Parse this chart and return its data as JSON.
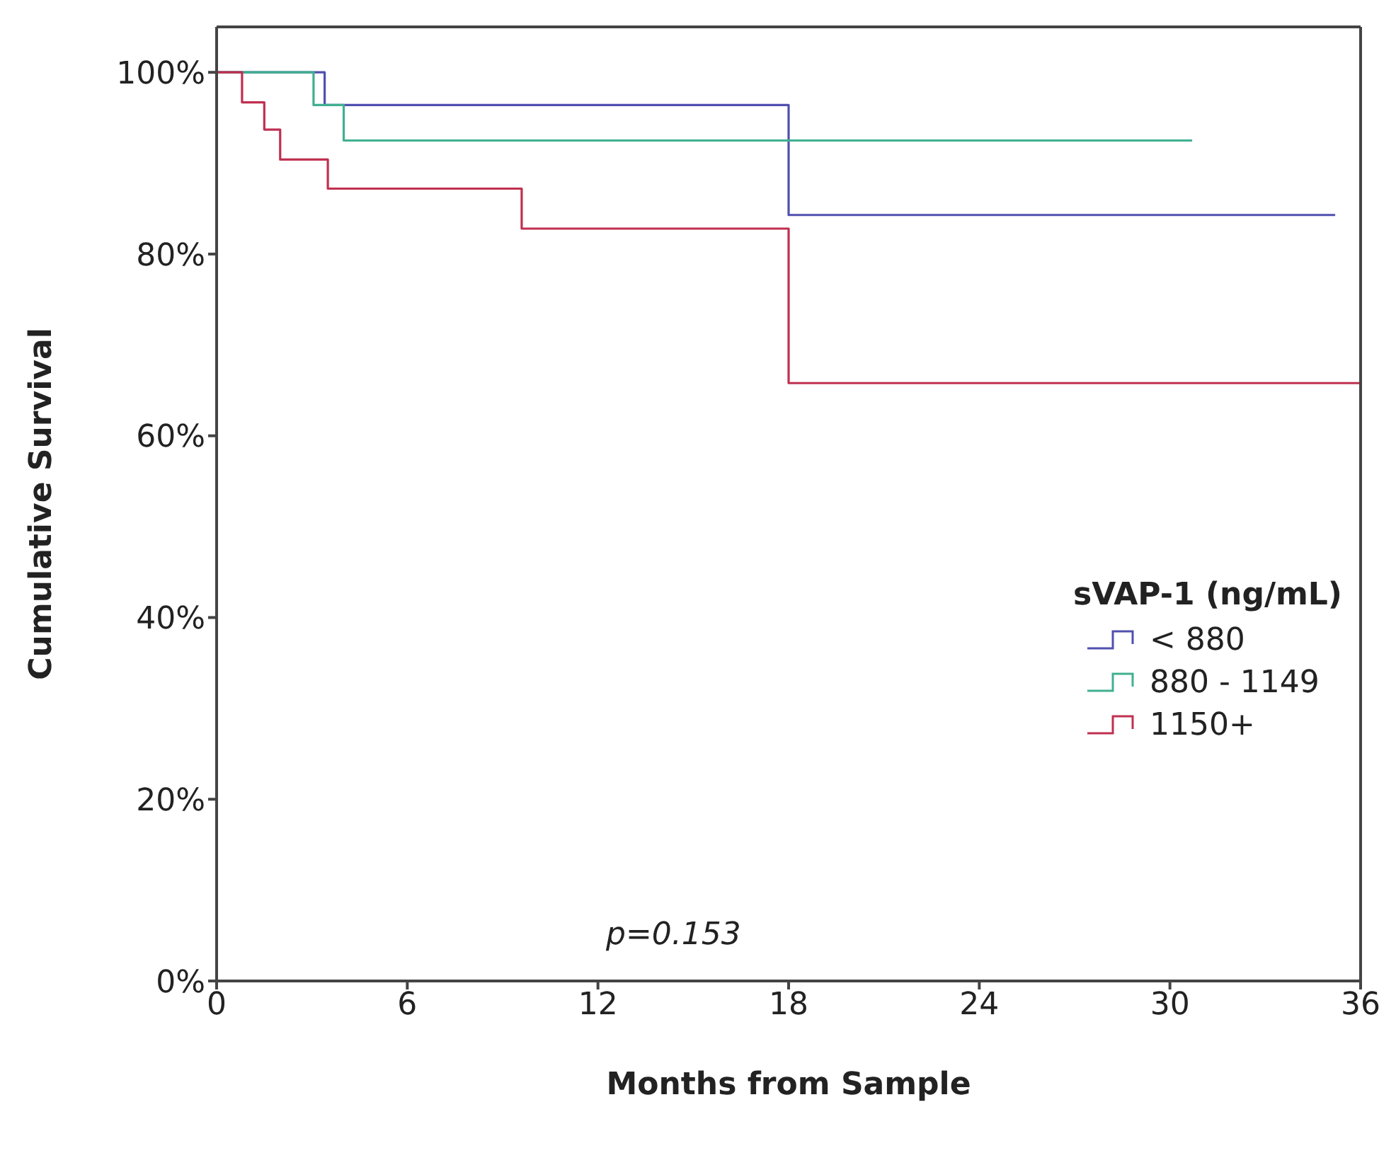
{
  "chart_data": {
    "type": "step",
    "xlabel": "Months from Sample",
    "ylabel": "Cumulative Survival",
    "legend_title": "sVAP-1 (ng/mL)",
    "legend": "right",
    "marker": "none",
    "xlim": [
      0,
      36
    ],
    "xticks": [
      0,
      6,
      12,
      18,
      24,
      30,
      36
    ],
    "ylim": [
      0,
      105
    ],
    "yticks": [
      {
        "value": 0,
        "label": "0%"
      },
      {
        "value": 20,
        "label": "20%"
      },
      {
        "value": 40,
        "label": "40%"
      },
      {
        "value": 60,
        "label": "60%"
      },
      {
        "value": 80,
        "label": "80%"
      },
      {
        "value": 100,
        "label": "100%"
      }
    ],
    "series": [
      {
        "name": "< 880",
        "color": "#5050b0",
        "x": [
          0,
          3.4,
          18,
          35.2
        ],
        "values": [
          100,
          96.4,
          84.3,
          84.3
        ]
      },
      {
        "name": "880 - 1149",
        "color": "#40b090",
        "x": [
          0,
          3.05,
          4,
          30.7
        ],
        "values": [
          100,
          96.4,
          92.5,
          92.5
        ]
      },
      {
        "name": "1150+",
        "color": "#c03050",
        "x": [
          0,
          0.8,
          1.5,
          2,
          3.5,
          9.6,
          18,
          36
        ],
        "values": [
          100,
          96.7,
          93.7,
          90.4,
          87.2,
          82.8,
          65.8,
          65.8
        ]
      }
    ],
    "annotations": [
      "p=0.153"
    ]
  }
}
